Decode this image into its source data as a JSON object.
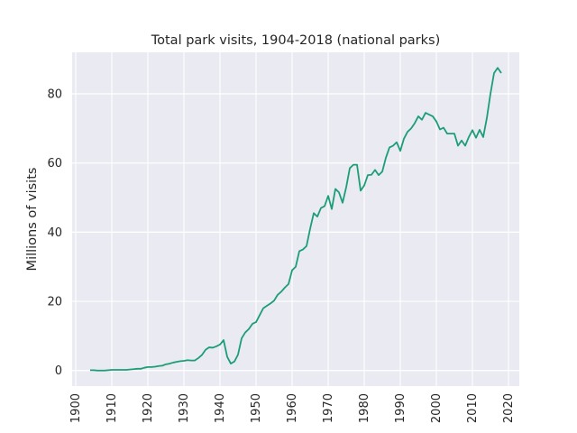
{
  "chart_data": {
    "type": "line",
    "title": "Total park visits, 1904-2018 (national parks)",
    "xlabel": "",
    "ylabel": "Millions of visits",
    "xlim": [
      1899,
      2023
    ],
    "ylim": [
      -4.5,
      92
    ],
    "xticks": [
      1900,
      1910,
      1920,
      1930,
      1940,
      1950,
      1960,
      1970,
      1980,
      1990,
      2000,
      2010,
      2020
    ],
    "yticks": [
      0,
      20,
      40,
      60,
      80
    ],
    "grid": true,
    "background": "#eaeaf2",
    "line_color": "#1b9e77",
    "series": [
      {
        "x": [
          1904,
          1905,
          1906,
          1907,
          1908,
          1909,
          1910,
          1911,
          1912,
          1913,
          1914,
          1915,
          1916,
          1917,
          1918,
          1919,
          1920,
          1921,
          1922,
          1923,
          1924,
          1925,
          1926,
          1927,
          1928,
          1929,
          1930,
          1931,
          1932,
          1933,
          1934,
          1935,
          1936,
          1937,
          1938,
          1939,
          1940,
          1941,
          1942,
          1943,
          1944,
          1945,
          1946,
          1947,
          1948,
          1949,
          1950,
          1951,
          1952,
          1953,
          1954,
          1955,
          1956,
          1957,
          1958,
          1959,
          1960,
          1961,
          1962,
          1963,
          1964,
          1965,
          1966,
          1967,
          1968,
          1969,
          1970,
          1971,
          1972,
          1973,
          1974,
          1975,
          1976,
          1977,
          1978,
          1979,
          1980,
          1981,
          1982,
          1983,
          1984,
          1985,
          1986,
          1987,
          1988,
          1989,
          1990,
          1991,
          1992,
          1993,
          1994,
          1995,
          1996,
          1997,
          1998,
          1999,
          2000,
          2001,
          2002,
          2003,
          2004,
          2005,
          2006,
          2007,
          2008,
          2009,
          2010,
          2011,
          2012,
          2013,
          2014,
          2015,
          2016,
          2017,
          2018
        ],
        "y": [
          0.1,
          0.1,
          0.0,
          0.0,
          0.0,
          0.1,
          0.2,
          0.2,
          0.2,
          0.2,
          0.2,
          0.3,
          0.4,
          0.5,
          0.5,
          0.8,
          1.0,
          1.0,
          1.1,
          1.3,
          1.4,
          1.8,
          2.0,
          2.3,
          2.5,
          2.7,
          2.8,
          3.0,
          2.9,
          2.9,
          3.6,
          4.5,
          6.0,
          6.7,
          6.6,
          7.0,
          7.5,
          8.8,
          4.0,
          2.0,
          2.6,
          4.6,
          9.3,
          11.0,
          12.0,
          13.5,
          14.0,
          16.0,
          18.0,
          18.7,
          19.4,
          20.2,
          21.9,
          22.8,
          24.0,
          25.0,
          29.0,
          30.0,
          34.5,
          35.0,
          36.0,
          41.0,
          45.5,
          44.5,
          47.0,
          47.5,
          50.5,
          46.7,
          52.5,
          51.5,
          48.5,
          53.0,
          58.5,
          59.5,
          59.5,
          52.0,
          53.5,
          56.5,
          56.6,
          58.0,
          56.5,
          57.5,
          61.5,
          64.5,
          65.0,
          66.0,
          63.5,
          67.0,
          69.0,
          70.0,
          71.5,
          73.5,
          72.5,
          74.5,
          74.0,
          73.5,
          72.0,
          69.7,
          70.2,
          68.5,
          68.5,
          68.5,
          65.0,
          66.5,
          65.0,
          67.5,
          69.5,
          67.3,
          69.6,
          67.5,
          73.0,
          80.0,
          86.0,
          87.5,
          86.0
        ]
      }
    ]
  }
}
